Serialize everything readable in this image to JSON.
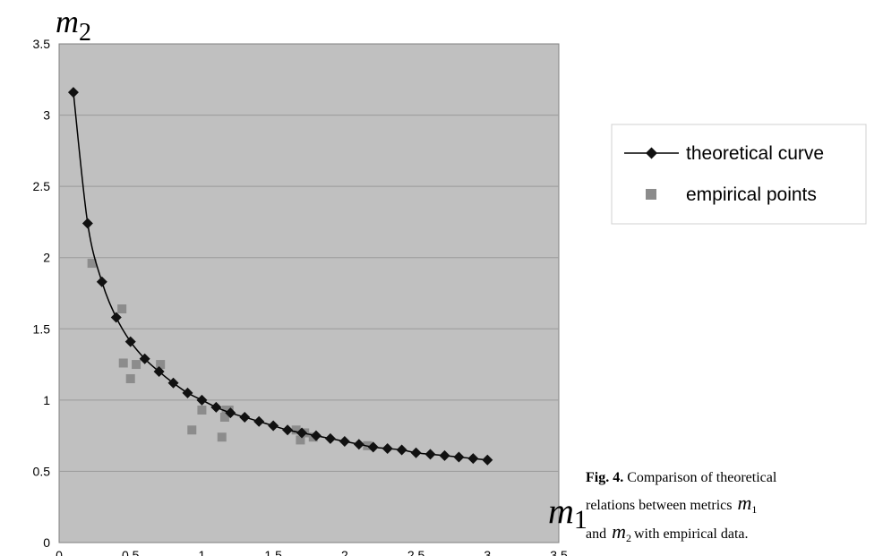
{
  "chart_data": {
    "type": "scatter",
    "xlim": [
      0,
      3.5
    ],
    "ylim": [
      0,
      3.5
    ],
    "x_ticks": [
      "0",
      "0.5",
      "1",
      "1.5",
      "2",
      "2.5",
      "3",
      "3.5"
    ],
    "y_ticks": [
      "0",
      "0.5",
      "1",
      "1.5",
      "2",
      "2.5",
      "3",
      "3.5"
    ],
    "grid": "horizontal",
    "plot_background": "#c0c0c0",
    "xlabel": {
      "var": "m",
      "sub": "1"
    },
    "ylabel": {
      "var": "m",
      "sub": "2"
    },
    "legend_position": "right",
    "series": [
      {
        "name": "theoretical curve",
        "style": "line-diamond",
        "color": "#000000",
        "x": [
          0.1,
          0.2,
          0.3,
          0.4,
          0.5,
          0.6,
          0.7,
          0.8,
          0.9,
          1.0,
          1.1,
          1.2,
          1.3,
          1.4,
          1.5,
          1.6,
          1.7,
          1.8,
          1.9,
          2.0,
          2.1,
          2.2,
          2.3,
          2.4,
          2.5,
          2.6,
          2.7,
          2.8,
          2.9,
          3.0
        ],
        "y": [
          3.16,
          2.24,
          1.83,
          1.58,
          1.41,
          1.29,
          1.2,
          1.12,
          1.05,
          1.0,
          0.95,
          0.91,
          0.88,
          0.85,
          0.82,
          0.79,
          0.77,
          0.75,
          0.73,
          0.71,
          0.69,
          0.67,
          0.66,
          0.65,
          0.63,
          0.62,
          0.61,
          0.6,
          0.59,
          0.58
        ]
      },
      {
        "name": "empirical points",
        "style": "square",
        "color": "#8c8c8c",
        "x": [
          0.23,
          0.44,
          0.45,
          0.5,
          0.54,
          0.71,
          0.93,
          1.0,
          1.14,
          1.16,
          1.17,
          1.19,
          1.66,
          1.69,
          1.72,
          1.78,
          2.16
        ],
        "y": [
          1.96,
          1.64,
          1.26,
          1.15,
          1.25,
          1.25,
          0.79,
          0.93,
          0.74,
          0.88,
          0.93,
          0.93,
          0.79,
          0.72,
          0.77,
          0.74,
          0.68
        ]
      }
    ]
  },
  "caption": {
    "label": "Fig. 4.",
    "line1": "Comparison of theoretical",
    "line2_before": "relations between metrics",
    "line3_before": "and",
    "line3_after": "with empirical data.",
    "var": "m",
    "sub1": "1",
    "sub2": "2"
  }
}
